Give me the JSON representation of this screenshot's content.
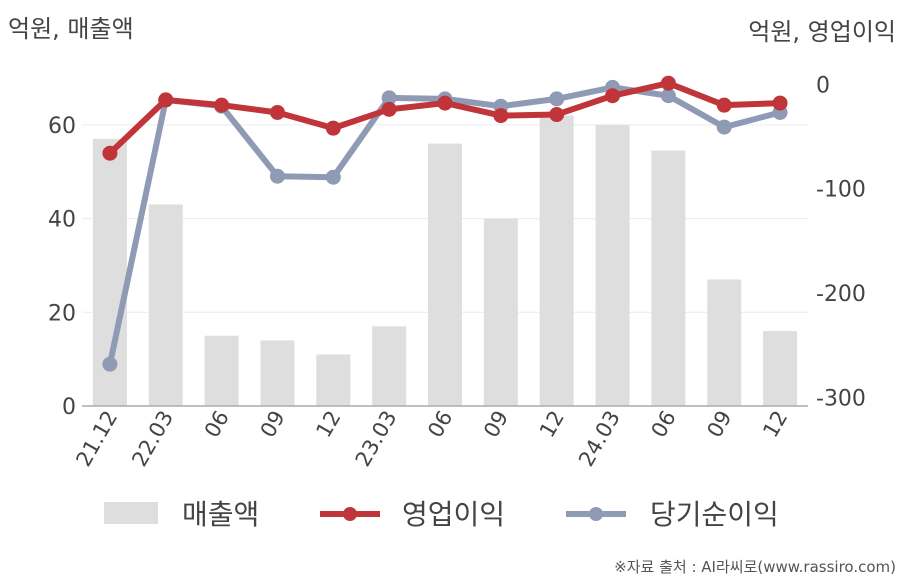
{
  "chart_data": {
    "type": "bar+line",
    "categories": [
      "21.12",
      "22.03",
      "06",
      "09",
      "12",
      "23.03",
      "06",
      "09",
      "12",
      "24.03",
      "06",
      "09",
      "12"
    ],
    "left_axis": {
      "title": "억원, 매출액",
      "ticks": [
        0,
        20,
        40,
        60
      ],
      "ylim": [
        0,
        70
      ]
    },
    "right_axis": {
      "title": "억원, 영업이익",
      "ticks": [
        0,
        -100,
        -200,
        -300
      ],
      "ylim": [
        -308,
        6
      ]
    },
    "series": [
      {
        "name": "매출액",
        "kind": "bar",
        "axis": "left",
        "color": "#dedede",
        "values": [
          57,
          43,
          15,
          14,
          11,
          17,
          56,
          40,
          62,
          60,
          54.5,
          27,
          16
        ]
      },
      {
        "name": "영업이익",
        "kind": "line",
        "axis": "right",
        "color": "#c0353a",
        "values": [
          -66,
          -15,
          -20,
          -27,
          -42,
          -24,
          -18,
          -30,
          -29,
          -11,
          1,
          -20,
          -18
        ]
      },
      {
        "name": "당기순이익",
        "kind": "line",
        "axis": "right",
        "color": "#8f9ab5",
        "values": [
          -268,
          -15,
          -21,
          -88,
          -89,
          -13,
          -14,
          -21,
          -14,
          -3,
          -11,
          -41,
          -27
        ]
      }
    ],
    "grid": true,
    "legend": "bottom"
  },
  "source_note": "※자료 출처 : AI라씨로(www.rassiro.com)"
}
